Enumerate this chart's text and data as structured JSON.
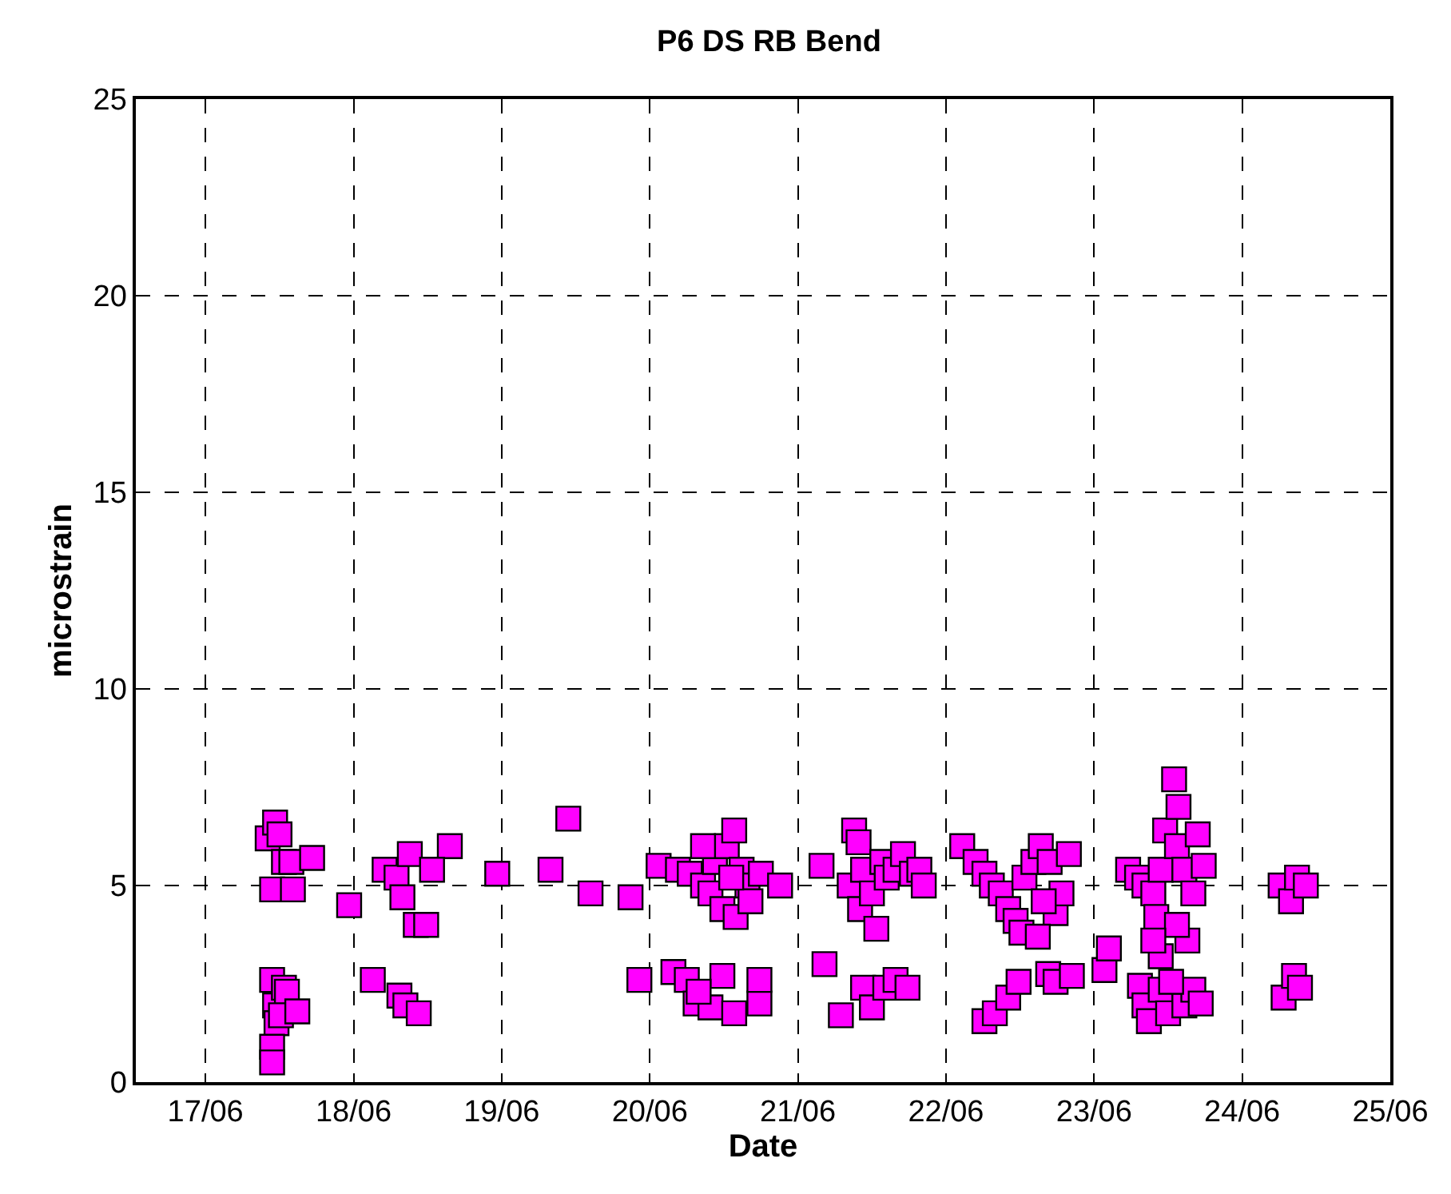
{
  "chart_data": {
    "type": "scatter",
    "title": "P6 DS RB Bend",
    "xlabel": "Date",
    "ylabel": "microstrain",
    "xlim": [
      "--06-16T12:43",
      "--06-25"
    ],
    "ylim": [
      0,
      25
    ],
    "xticks": [
      {
        "value": "--06-17",
        "label": "17/06"
      },
      {
        "value": "--06-18",
        "label": "18/06"
      },
      {
        "value": "--06-19",
        "label": "19/06"
      },
      {
        "value": "--06-20",
        "label": "20/06"
      },
      {
        "value": "--06-21",
        "label": "21/06"
      },
      {
        "value": "--06-22",
        "label": "22/06"
      },
      {
        "value": "--06-23",
        "label": "23/06"
      },
      {
        "value": "--06-24",
        "label": "24/06"
      },
      {
        "value": "--06-25",
        "label": "25/06"
      }
    ],
    "yticks": [
      0,
      5,
      10,
      15,
      20,
      25
    ],
    "grid": true,
    "marker": "square",
    "series": [
      {
        "color": "#ff00ff",
        "x": [
          "--06-17T10:05",
          "--06-17T11:17",
          "--06-17T12:00",
          "--06-17T12:43",
          "--06-17T13:55",
          "--06-17T17:17",
          "--06-17T10:48",
          "--06-17T14:10",
          "--06-17T10:48",
          "--06-17T11:17",
          "--06-17T11:31",
          "--06-17T10:48",
          "--06-17T10:48",
          "--06-17T12:43",
          "--06-17T13:12",
          "--06-17T12:14",
          "--06-17T14:53",
          "--06-17T23:17",
          "--06-18T05:02",
          "--06-18T06:58",
          "--06-18T09:07",
          "--06-18T07:55",
          "--06-18T10:05",
          "--06-18T11:46",
          "--06-18T03:07",
          "--06-18T07:26",
          "--06-18T08:24",
          "--06-18T10:34",
          "--06-18T15:36",
          "--06-18T12:43",
          "--06-18T23:17",
          "--06-19T07:55",
          "--06-19T10:48",
          "--06-19T14:24",
          "--06-19T20:53",
          "--06-19T22:19",
          "--06-20T01:26",
          "--06-20T04:34",
          "--06-20T06:29",
          "--06-20T08:38",
          "--06-20T09:50",
          "--06-20T10:34",
          "--06-20T11:46",
          "--06-20T12:29",
          "--06-20T13:41",
          "--06-20T13:55",
          "--06-20T14:53",
          "--06-20T15:50",
          "--06-20T16:19",
          "--06-20T18:00",
          "--06-20T21:07",
          "--06-20T08:38",
          "--06-20T13:12",
          "--06-20T03:50",
          "--06-20T06:00",
          "--06-20T07:26",
          "--06-20T09:50",
          "--06-20T11:46",
          "--06-20T13:41",
          "--06-20T17:46",
          "--06-20T17:46",
          "--06-20T07:55",
          "--06-21T03:50",
          "--06-21T09:07",
          "--06-21T09:50",
          "--06-21T08:24",
          "--06-21T10:05",
          "--06-21T10:34",
          "--06-21T12:00",
          "--06-21T12:43",
          "--06-21T13:41",
          "--06-21T14:24",
          "--06-21T15:50",
          "--06-21T17:02",
          "--06-21T18:29",
          "--06-21T19:41",
          "--06-21T20:24",
          "--06-21T04:19",
          "--06-21T06:58",
          "--06-21T10:34",
          "--06-21T12:00",
          "--06-21T14:10",
          "--06-21T15:50",
          "--06-21T17:46",
          "--06-22T02:38",
          "--06-22T04:48",
          "--06-22T06:14",
          "--06-22T07:26",
          "--06-22T08:53",
          "--06-22T10:05",
          "--06-22T11:17",
          "--06-22T12:14",
          "--06-22T12:43",
          "--06-22T14:10",
          "--06-22T15:22",
          "--06-22T16:48",
          "--06-22T17:46",
          "--06-22T18:43",
          "--06-22T19:55",
          "--06-22T15:50",
          "--06-22T14:53",
          "--06-22T06:14",
          "--06-22T07:55",
          "--06-22T10:05",
          "--06-22T11:46",
          "--06-22T16:34",
          "--06-22T17:46",
          "--06-22T20:24",
          "--06-23T01:41",
          "--06-23T02:24",
          "--06-23T05:31",
          "--06-23T06:58",
          "--06-23T08:10",
          "--06-23T09:36",
          "--06-23T10:05",
          "--06-23T10:48",
          "--06-23T11:31",
          "--06-23T12:58",
          "--06-23T13:41",
          "--06-23T13:26",
          "--06-23T14:38",
          "--06-23T16:05",
          "--06-23T16:48",
          "--06-23T17:46",
          "--06-23T15:07",
          "--06-23T10:48",
          "--06-23T13:26",
          "--06-23T09:36",
          "--06-23T07:26",
          "--06-23T08:10",
          "--06-23T08:53",
          "--06-23T10:48",
          "--06-23T12:00",
          "--06-23T14:38",
          "--06-23T16:05",
          "--06-23T17:17",
          "--06-23T12:29",
          "--06-24T06:14",
          "--06-24T07:55",
          "--06-24T08:53",
          "--06-24T10:19",
          "--06-24T06:43",
          "--06-24T08:24",
          "--06-24T09:22"
        ],
        "values": [
          6.2,
          6.6,
          6.3,
          5.6,
          5.6,
          5.7,
          4.9,
          4.9,
          2.6,
          1.95,
          1.5,
          0.9,
          0.5,
          2.4,
          2.3,
          1.7,
          1.8,
          4.5,
          5.4,
          5.2,
          5.8,
          4.7,
          4.0,
          4.0,
          2.6,
          2.2,
          1.95,
          1.75,
          6.0,
          5.4,
          5.3,
          5.4,
          6.7,
          4.8,
          4.7,
          2.6,
          5.5,
          5.4,
          5.3,
          5.0,
          4.8,
          5.6,
          4.4,
          6.0,
          6.4,
          4.2,
          5.4,
          5.0,
          4.6,
          5.3,
          5.0,
          6.0,
          5.2,
          2.8,
          2.6,
          2.0,
          1.9,
          2.7,
          1.75,
          2.0,
          2.6,
          2.3,
          5.5,
          6.4,
          6.1,
          5.0,
          4.4,
          5.4,
          4.8,
          3.9,
          5.6,
          5.2,
          5.4,
          5.8,
          5.3,
          5.4,
          5.0,
          3.0,
          1.7,
          2.4,
          1.9,
          2.4,
          2.6,
          2.4,
          6.0,
          5.6,
          5.3,
          5.0,
          4.8,
          4.4,
          4.1,
          3.8,
          5.2,
          5.6,
          6.0,
          5.6,
          4.3,
          4.8,
          5.8,
          4.6,
          3.7,
          1.55,
          1.75,
          2.15,
          2.55,
          2.75,
          2.55,
          2.7,
          2.85,
          3.4,
          5.4,
          5.2,
          5.0,
          4.8,
          4.2,
          5.4,
          6.4,
          7.7,
          7.0,
          6.0,
          5.4,
          4.8,
          6.3,
          5.5,
          3.6,
          3.2,
          4.0,
          3.6,
          2.45,
          1.95,
          1.55,
          2.35,
          1.75,
          1.95,
          2.35,
          2.0,
          2.55,
          5.0,
          4.6,
          5.2,
          5.0,
          2.15,
          2.7,
          2.4
        ]
      }
    ]
  }
}
